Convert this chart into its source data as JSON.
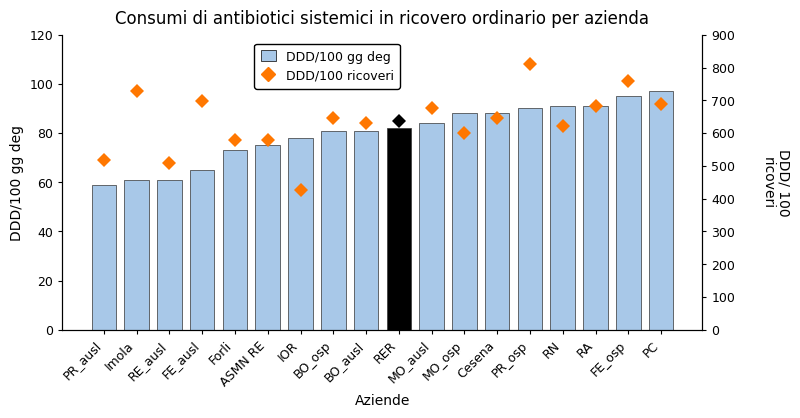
{
  "categories": [
    "PR_ausl",
    "Imola",
    "RE_ausl",
    "FE_ausl",
    "Forli",
    "ASMN RE",
    "IOR",
    "BO_osp",
    "BO_ausl",
    "RER",
    "MO_ausl",
    "MO_osp",
    "Cesena",
    "PR_osp",
    "RN",
    "RA",
    "FE_osp",
    "PC"
  ],
  "bar_values": [
    59,
    61,
    61,
    65,
    73,
    75,
    78,
    81,
    81,
    82,
    84,
    88,
    88,
    90,
    91,
    91,
    95,
    97
  ],
  "bar_colors": [
    "#a8c8e8",
    "#a8c8e8",
    "#a8c8e8",
    "#a8c8e8",
    "#a8c8e8",
    "#a8c8e8",
    "#a8c8e8",
    "#a8c8e8",
    "#a8c8e8",
    "#000000",
    "#a8c8e8",
    "#a8c8e8",
    "#a8c8e8",
    "#a8c8e8",
    "#a8c8e8",
    "#a8c8e8",
    "#a8c8e8",
    "#a8c8e8"
  ],
  "diamond_values_left": [
    69,
    97,
    68,
    93,
    77,
    77,
    57,
    86,
    84,
    85,
    90,
    80,
    86,
    108,
    83,
    91,
    101,
    92
  ],
  "title": "Consumi di antibiotici sistemici in ricovero ordinario per azienda",
  "xlabel": "Aziende",
  "ylabel_left": "DDD/100 gg deg",
  "ylabel_right": "DDD/ 100\nricoveri",
  "ylim_left": [
    0,
    120
  ],
  "ylim_right": [
    0,
    900
  ],
  "yticks_left": [
    0,
    20,
    40,
    60,
    80,
    100,
    120
  ],
  "yticks_right": [
    0,
    100,
    200,
    300,
    400,
    500,
    600,
    700,
    800,
    900
  ],
  "legend_bar_label": "DDD/100 gg deg",
  "legend_diamond_label": "DDD/100 ricoveri",
  "bar_color_blue": "#a8c8e8",
  "bar_color_black": "#000000",
  "diamond_color": "#ff7700",
  "diamond_color_rer": "#000000",
  "background_color": "#ffffff",
  "title_fontsize": 12,
  "axis_fontsize": 10,
  "tick_fontsize": 9
}
